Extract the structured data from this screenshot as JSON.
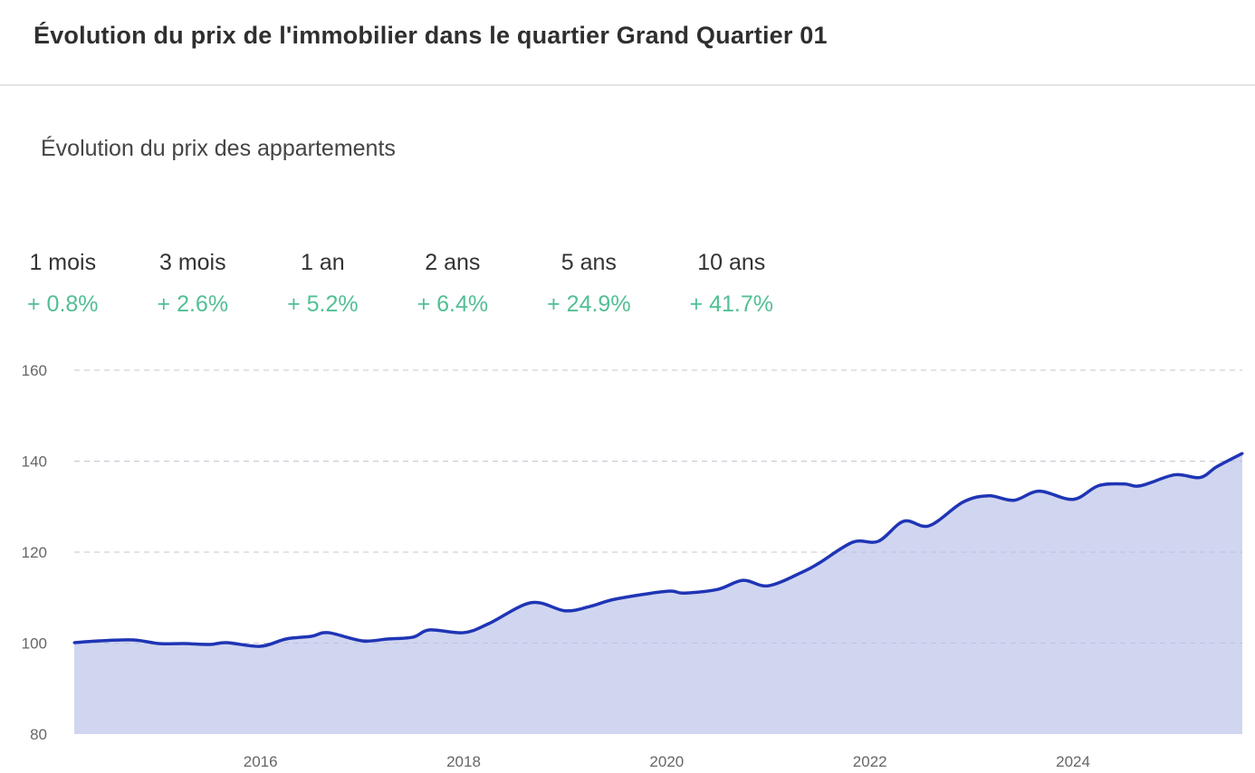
{
  "header": {
    "title": "Évolution du prix de l'immobilier dans le quartier Grand Quartier 01"
  },
  "subtitle": "Évolution du prix des appartements",
  "stats": [
    {
      "label": "1 mois",
      "value": "+ 0.8%"
    },
    {
      "label": "3 mois",
      "value": "+ 2.6%"
    },
    {
      "label": "1 an",
      "value": "+ 5.2%"
    },
    {
      "label": "2 ans",
      "value": "+ 6.4%"
    },
    {
      "label": "5 ans",
      "value": "+ 24.9%"
    },
    {
      "label": "10 ans",
      "value": "+ 41.7%"
    }
  ],
  "colors": {
    "positive": "#52bf94",
    "line": "#1f35b5",
    "fill": "#d1d6f0",
    "grid": "#dddddd"
  },
  "chart_data": {
    "type": "area",
    "title": "",
    "xlabel": "",
    "ylabel": "",
    "ylim": [
      80,
      160
    ],
    "xlim": [
      "2014-03",
      "2025-09"
    ],
    "yticks": [
      "80",
      "100",
      "120",
      "140",
      "160"
    ],
    "xticks": [
      "2016",
      "2018",
      "2020",
      "2022",
      "2024"
    ],
    "grid": true,
    "legend": "none",
    "x": [
      "2014-03",
      "2014-06",
      "2014-10",
      "2015-01",
      "2015-04",
      "2015-07",
      "2015-09",
      "2016-01",
      "2016-04",
      "2016-07",
      "2016-09",
      "2017-01",
      "2017-04",
      "2017-07",
      "2017-09",
      "2018-01",
      "2018-04",
      "2018-09",
      "2019-01",
      "2019-04",
      "2019-07",
      "2020-01",
      "2020-03",
      "2020-07",
      "2020-10",
      "2021-01",
      "2021-05",
      "2021-07",
      "2021-11",
      "2022-02",
      "2022-05",
      "2022-08",
      "2022-12",
      "2023-03",
      "2023-06",
      "2023-09",
      "2024-01",
      "2024-04",
      "2024-07",
      "2024-09",
      "2025-01",
      "2025-04",
      "2025-06",
      "2025-09"
    ],
    "values": [
      100.1,
      100.5,
      100.7,
      99.9,
      99.9,
      99.7,
      100.1,
      99.3,
      100.9,
      101.5,
      102.3,
      100.5,
      100.9,
      101.3,
      102.9,
      102.3,
      104.3,
      108.9,
      107.1,
      108.1,
      109.7,
      111.4,
      111.0,
      111.8,
      113.8,
      112.6,
      115.6,
      117.6,
      122.2,
      122.4,
      126.8,
      125.8,
      131.0,
      132.4,
      131.4,
      133.4,
      131.6,
      134.6,
      135.0,
      134.6,
      137.0,
      136.4,
      138.8,
      141.7
    ]
  }
}
